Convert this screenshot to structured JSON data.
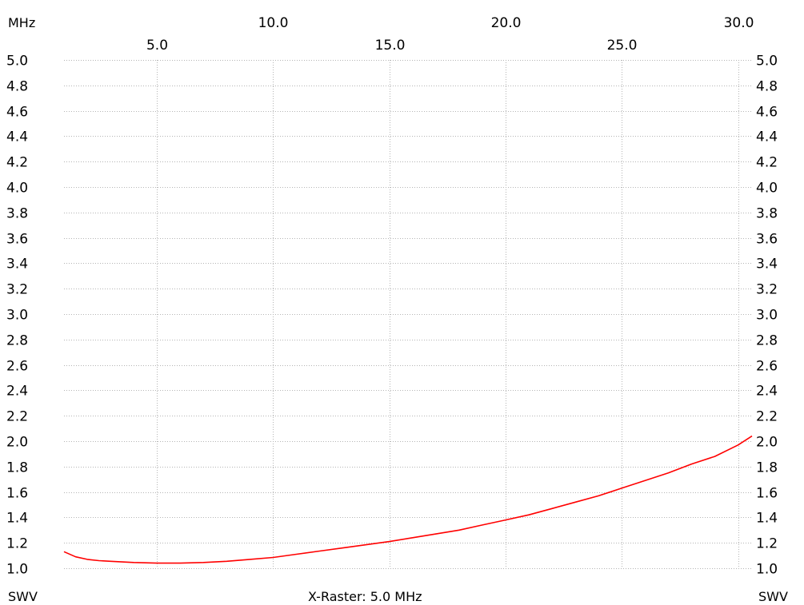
{
  "window": {
    "x_unit": "MHz",
    "left_axis_name": "SWV",
    "right_axis_name": "SWV",
    "x_raster": "X-Raster: 5.0 MHz"
  },
  "colors": {
    "background": "#ffffff",
    "grid": "#b4b4b4",
    "trace": "#ff0000",
    "text": "#000000"
  },
  "chart_data": {
    "type": "line",
    "title": "",
    "xlabel": "MHz",
    "ylabel": "SWV",
    "xlim": [
      1.0,
      30.6
    ],
    "ylim": [
      1.0,
      5.0
    ],
    "grid": true,
    "x_ticks_upper": [
      "10.0",
      "20.0",
      "30.0"
    ],
    "x_ticks_lower": [
      "5.0",
      "15.0",
      "25.0"
    ],
    "y_ticks": [
      "5.0",
      "4.8",
      "4.6",
      "4.4",
      "4.2",
      "4.0",
      "3.8",
      "3.6",
      "3.4",
      "3.2",
      "3.0",
      "2.8",
      "2.6",
      "2.4",
      "2.2",
      "2.0",
      "1.8",
      "1.6",
      "1.4",
      "1.2",
      "1.0"
    ],
    "series": [
      {
        "color": "#ff0000",
        "x": [
          1.0,
          1.5,
          2.0,
          2.5,
          3.0,
          4.0,
          5.0,
          6.0,
          7.0,
          8.0,
          9.0,
          10.0,
          11.0,
          12.0,
          13.0,
          14.0,
          15.0,
          16.0,
          17.0,
          18.0,
          19.0,
          20.0,
          21.0,
          22.0,
          23.0,
          24.0,
          25.0,
          26.0,
          27.0,
          28.0,
          29.0,
          30.0,
          30.6
        ],
        "y": [
          1.13,
          1.09,
          1.07,
          1.06,
          1.055,
          1.045,
          1.04,
          1.04,
          1.045,
          1.055,
          1.07,
          1.085,
          1.11,
          1.135,
          1.16,
          1.185,
          1.21,
          1.24,
          1.27,
          1.3,
          1.34,
          1.38,
          1.42,
          1.47,
          1.52,
          1.57,
          1.63,
          1.69,
          1.75,
          1.82,
          1.88,
          1.97,
          2.04
        ]
      }
    ]
  }
}
